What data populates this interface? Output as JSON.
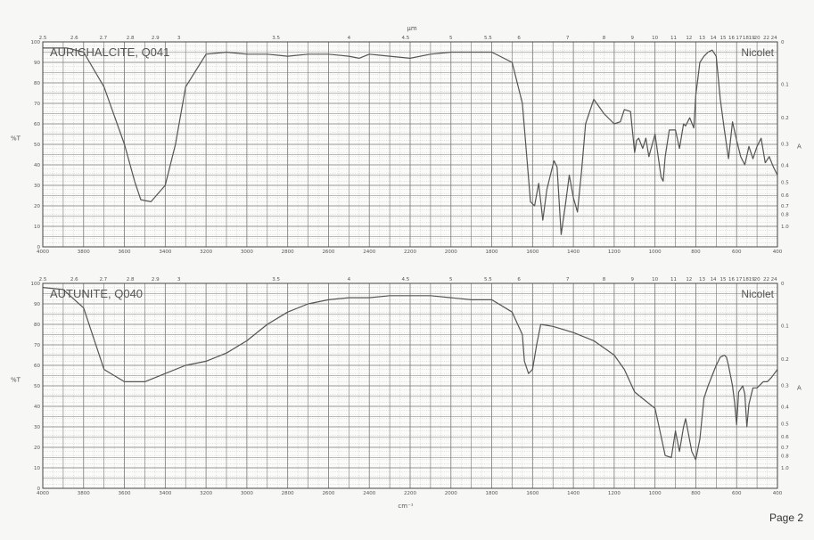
{
  "page": {
    "number_label": "Page 2"
  },
  "colors": {
    "grid_major": "#7a7a7a",
    "grid_minor": "#c4c4c4",
    "trace": "#555555",
    "frame": "#444444"
  },
  "chart_data": [
    {
      "type": "line",
      "title": "AURICHALCITE, Q041",
      "source_label": "Nicolet",
      "ylabel": "%T",
      "top_axis_label": "μm",
      "right_axis_label": "A",
      "x_ticks": [
        "4000",
        "3800",
        "3600",
        "3400",
        "3200",
        "3000",
        "2800",
        "2600",
        "2400",
        "2200",
        "2000",
        "1800",
        "1600",
        "1400",
        "1200",
        "1000",
        "800",
        "600",
        "400"
      ],
      "wavelength_ticks": [
        "2.5",
        "2.6",
        "2.7",
        "2.8",
        "2.9",
        "3",
        "3.5",
        "4",
        "4.5",
        "5",
        "5.5",
        "6",
        "7",
        "8",
        "9",
        "10",
        "11",
        "12",
        "13",
        "14",
        "15",
        "16",
        "17",
        "18",
        "19",
        "20",
        "22",
        "24"
      ],
      "y_ticks": [
        "100",
        "90",
        "80",
        "70",
        "60",
        "50",
        "40",
        "30",
        "20",
        "10",
        "0"
      ],
      "right_ticks": [
        "0",
        "0.1",
        "0.2",
        "0.3",
        "0.4",
        "0.5",
        "0.6",
        "0.7",
        "0.8",
        "1.0"
      ],
      "xlim": [
        4000,
        400
      ],
      "ylim": [
        0,
        100
      ],
      "grid": true,
      "series": [
        {
          "x": [
            4000,
            3880,
            3800,
            3700,
            3600,
            3550,
            3520,
            3470,
            3400,
            3350,
            3300,
            3200,
            3100,
            3000,
            2900,
            2800,
            2700,
            2600,
            2500,
            2450,
            2400,
            2300,
            2200,
            2100,
            2000,
            1900,
            1800,
            1700,
            1650,
            1610,
            1590,
            1570,
            1550,
            1530,
            1510,
            1495,
            1480,
            1460,
            1440,
            1420,
            1400,
            1380,
            1360,
            1340,
            1300,
            1250,
            1200,
            1170,
            1150,
            1120,
            1100,
            1090,
            1080,
            1060,
            1045,
            1030,
            1000,
            970,
            960,
            950,
            930,
            900,
            880,
            860,
            850,
            830,
            810,
            800,
            780,
            760,
            740,
            720,
            700,
            680,
            660,
            640,
            620,
            600,
            580,
            560,
            540,
            520,
            500,
            480,
            460,
            440,
            420,
            400
          ],
          "y": [
            97,
            97,
            95,
            78,
            50,
            32,
            23,
            22,
            30,
            50,
            78,
            94,
            95,
            94,
            94,
            93,
            94,
            94,
            93,
            92,
            94,
            93,
            92,
            94,
            95,
            95,
            95,
            90,
            70,
            22,
            20,
            31,
            13,
            28,
            36,
            42,
            39,
            6,
            20,
            35,
            24,
            17,
            37,
            60,
            72,
            65,
            60,
            61,
            67,
            66,
            46,
            52,
            53,
            48,
            53,
            44,
            55,
            34,
            32,
            44,
            57,
            57,
            48,
            60,
            59,
            63,
            58,
            74,
            90,
            93,
            95,
            96,
            93,
            72,
            57,
            43,
            61,
            52,
            44,
            40,
            49,
            43,
            49,
            53,
            41,
            44,
            39,
            35
          ]
        }
      ]
    },
    {
      "type": "line",
      "title": "AUTUNITE, Q040",
      "source_label": "Nicolet",
      "ylabel": "%T",
      "xlabel": "cm⁻¹",
      "right_axis_label": "A",
      "x_ticks": [
        "4000",
        "3800",
        "3600",
        "3400",
        "3200",
        "3000",
        "2800",
        "2600",
        "2400",
        "2200",
        "2000",
        "1800",
        "1600",
        "1400",
        "1200",
        "1000",
        "800",
        "600",
        "400"
      ],
      "wavelength_ticks": [
        "2.5",
        "2.6",
        "2.7",
        "2.8",
        "2.9",
        "3",
        "3.5",
        "4",
        "4.5",
        "5",
        "5.5",
        "6",
        "7",
        "8",
        "9",
        "10",
        "11",
        "12",
        "13",
        "14",
        "15",
        "16",
        "17",
        "18",
        "19",
        "20",
        "22",
        "24"
      ],
      "y_ticks": [
        "100",
        "90",
        "80",
        "70",
        "60",
        "50",
        "40",
        "30",
        "20",
        "10",
        "0"
      ],
      "right_ticks": [
        "0",
        "0.1",
        "0.2",
        "0.3",
        "0.4",
        "0.5",
        "0.6",
        "0.7",
        "0.8",
        "1.0"
      ],
      "xlim": [
        4000,
        400
      ],
      "ylim": [
        0,
        100
      ],
      "grid": true,
      "series": [
        {
          "x": [
            4000,
            3900,
            3800,
            3700,
            3600,
            3500,
            3400,
            3300,
            3200,
            3100,
            3000,
            2900,
            2800,
            2700,
            2600,
            2500,
            2400,
            2300,
            2200,
            2100,
            2000,
            1900,
            1800,
            1700,
            1650,
            1640,
            1620,
            1600,
            1580,
            1560,
            1500,
            1400,
            1300,
            1200,
            1150,
            1100,
            1050,
            1000,
            980,
            950,
            920,
            900,
            880,
            860,
            850,
            820,
            800,
            780,
            760,
            740,
            700,
            680,
            660,
            650,
            640,
            620,
            610,
            600,
            590,
            570,
            560,
            550,
            540,
            520,
            500,
            470,
            450,
            430,
            400
          ],
          "y": [
            98,
            97,
            88,
            58,
            52,
            52,
            56,
            60,
            62,
            66,
            72,
            80,
            86,
            90,
            92,
            93,
            93,
            94,
            94,
            94,
            93,
            92,
            92,
            86,
            75,
            62,
            56,
            58,
            70,
            80,
            79,
            76,
            72,
            65,
            58,
            47,
            43,
            39,
            30,
            16,
            15,
            28,
            18,
            30,
            34,
            18,
            14,
            24,
            44,
            50,
            60,
            64,
            65,
            64,
            60,
            50,
            42,
            31,
            47,
            50,
            46,
            30,
            41,
            49,
            49,
            52,
            52,
            54,
            58
          ]
        }
      ]
    }
  ]
}
